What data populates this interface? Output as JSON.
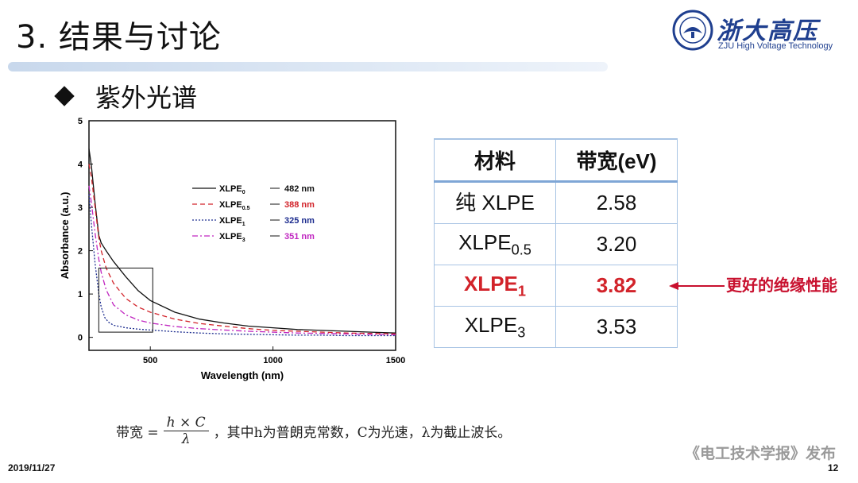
{
  "slide": {
    "title": "3. 结果与讨论",
    "section": "紫外光谱",
    "date": "2019/11/27",
    "page": "12",
    "publisher": "《电工技术学报》发布"
  },
  "logo": {
    "text": "浙大高压",
    "subtitle": "ZJU High Voltage Technology",
    "seal_text": "ZHEJIANG UNIVERSITY",
    "color": "#1f3f8f"
  },
  "chart_data": {
    "type": "line",
    "xlabel": "Wavelength (nm)",
    "ylabel": "Absorbance (a.u.)",
    "xlim": [
      250,
      1500
    ],
    "ylim": [
      -0.3,
      5
    ],
    "xticks": [
      500,
      1000,
      1500
    ],
    "yticks": [
      0,
      1,
      2,
      3,
      4,
      5
    ],
    "grid": false,
    "legend_position": "center-right",
    "series": [
      {
        "name": "XLPE",
        "sub": "0",
        "cutoff": "482 nm",
        "color": "#111111",
        "dash": "solid",
        "x": [
          250,
          260,
          275,
          290,
          300,
          320,
          350,
          400,
          450,
          500,
          600,
          700,
          800,
          900,
          1000,
          1100,
          1200,
          1300,
          1400,
          1500
        ],
        "y": [
          4.35,
          3.95,
          3.1,
          2.35,
          2.18,
          2.0,
          1.75,
          1.4,
          1.08,
          0.85,
          0.58,
          0.42,
          0.33,
          0.26,
          0.22,
          0.18,
          0.16,
          0.14,
          0.12,
          0.1
        ]
      },
      {
        "name": "XLPE",
        "sub": "0.5",
        "cutoff": "388 nm",
        "color": "#d2232a",
        "dash": "6,4",
        "x": [
          250,
          260,
          275,
          290,
          300,
          320,
          350,
          400,
          450,
          500,
          600,
          700,
          800,
          900,
          1000,
          1100,
          1200,
          1300,
          1400,
          1500
        ],
        "y": [
          4.0,
          3.7,
          3.0,
          2.3,
          2.0,
          1.6,
          1.25,
          0.9,
          0.7,
          0.58,
          0.42,
          0.32,
          0.26,
          0.2,
          0.16,
          0.14,
          0.12,
          0.1,
          0.09,
          0.08
        ]
      },
      {
        "name": "XLPE",
        "sub": "1",
        "cutoff": "325 nm",
        "color": "#1d2d8f",
        "dash": "2,2",
        "x": [
          250,
          260,
          275,
          290,
          300,
          315,
          330,
          350,
          400,
          450,
          500,
          600,
          700,
          800,
          900,
          1000,
          1100,
          1200,
          1300,
          1400,
          1500
        ],
        "y": [
          3.3,
          2.6,
          1.7,
          1.0,
          0.7,
          0.45,
          0.35,
          0.28,
          0.22,
          0.19,
          0.17,
          0.13,
          0.1,
          0.08,
          0.07,
          0.06,
          0.05,
          0.05,
          0.04,
          0.04,
          0.04
        ]
      },
      {
        "name": "XLPE",
        "sub": "3",
        "cutoff": "351 nm",
        "color": "#c026c0",
        "dash": "7,3,2,3",
        "x": [
          250,
          260,
          275,
          290,
          300,
          320,
          350,
          400,
          450,
          500,
          600,
          700,
          800,
          900,
          1000,
          1100,
          1200,
          1300,
          1400,
          1500
        ],
        "y": [
          3.5,
          3.1,
          2.4,
          1.8,
          1.5,
          1.1,
          0.75,
          0.52,
          0.4,
          0.33,
          0.25,
          0.2,
          0.17,
          0.14,
          0.12,
          0.1,
          0.09,
          0.08,
          0.07,
          0.06
        ]
      }
    ],
    "annotation_box": {
      "x": [
        290,
        510
      ],
      "y": [
        0.12,
        1.6
      ]
    }
  },
  "table": {
    "headers": [
      "材料",
      "带宽(eV)"
    ],
    "rows": [
      {
        "material": "纯 XLPE",
        "sub": "",
        "value": "2.58",
        "highlight": false
      },
      {
        "material": "XLPE",
        "sub": "0.5",
        "value": "3.20",
        "highlight": false
      },
      {
        "material": "XLPE",
        "sub": "1",
        "value": "3.82",
        "highlight": true
      },
      {
        "material": "XLPE",
        "sub": "3",
        "value": "3.53",
        "highlight": false
      }
    ],
    "highlight_color": "#d2232a",
    "note": "更好的绝缘性能"
  },
  "formula": {
    "lhs": "带宽 =",
    "numerator": "h × C",
    "denominator": "λ",
    "explanation": "，其中h为普朗克常数，C为光速，λ为截止波长。"
  }
}
